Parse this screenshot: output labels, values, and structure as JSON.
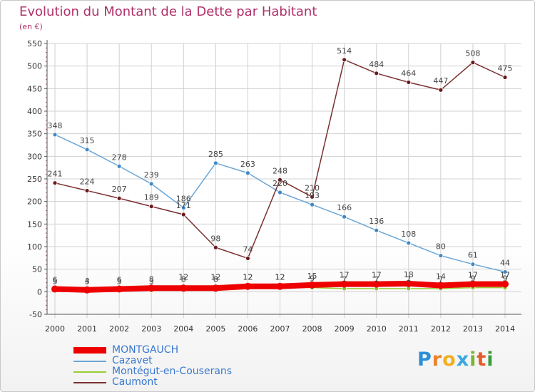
{
  "title": "Evolution du Montant de la Dette par Habitant",
  "subtitle": "(en €)",
  "logo": {
    "text": "Proxiti",
    "letter_colors": [
      "#2a8fd8",
      "#e8842a",
      "#f0b020",
      "#3aa8e0",
      "#7ab530",
      "#e85a2a",
      "#3a9a3a"
    ]
  },
  "colors": {
    "title": "#b0306a",
    "axis_text": "#333333",
    "grid": "#d0d0d0",
    "axis": "#555555"
  },
  "chart_data": {
    "type": "line",
    "categories": [
      "2000",
      "2001",
      "2002",
      "2003",
      "2004",
      "2005",
      "2006",
      "2007",
      "2008",
      "2009",
      "2010",
      "2011",
      "2012",
      "2013",
      "2014"
    ],
    "ylim": [
      -50,
      550
    ],
    "yticks": [
      -50,
      0,
      50,
      100,
      150,
      200,
      250,
      300,
      350,
      400,
      450,
      500,
      550
    ],
    "grid": true,
    "legend_position": "bottom-left",
    "series": [
      {
        "name": "MONTGAUCH",
        "color": "#ee0000",
        "width": "thick",
        "values": [
          6,
          4,
          6,
          8,
          8,
          8,
          12,
          12,
          15,
          17,
          17,
          18,
          14,
          17,
          17
        ],
        "labels": [
          "6",
          "4",
          "6",
          "8",
          "8",
          "8",
          "12",
          "12",
          "15",
          "17",
          "17",
          "18",
          "14",
          "17",
          "17"
        ],
        "marker_color": "#ee0000"
      },
      {
        "name": "Cazavet",
        "color": "#6aa6d6",
        "width": "thin",
        "values": [
          348,
          315,
          278,
          239,
          186,
          285,
          263,
          220,
          193,
          166,
          136,
          108,
          80,
          61,
          44
        ],
        "labels": [
          "348",
          "315",
          "278",
          "239",
          "186",
          "285",
          "263",
          "220",
          "193",
          "166",
          "136",
          "108",
          "80",
          "61",
          "44"
        ],
        "marker_color": "#3f88c8"
      },
      {
        "name": "Montégut-en-Couserans",
        "color": "#99cc33",
        "width": "thin",
        "values": [
          3,
          3,
          3,
          3,
          12,
          12,
          12,
          12,
          9,
          7,
          7,
          7,
          7,
          9,
          9
        ],
        "labels": [
          "3",
          "3",
          "3",
          "3",
          "12",
          "12",
          "12",
          "12",
          "9",
          "7",
          "7",
          "7",
          "7",
          "9",
          "9"
        ],
        "marker_color": "#88c030"
      },
      {
        "name": "Caumont",
        "color": "#7a3030",
        "width": "thin",
        "values": [
          241,
          224,
          207,
          189,
          171,
          98,
          74,
          248,
          210,
          514,
          484,
          464,
          447,
          508,
          475
        ],
        "labels": [
          "241",
          "224",
          "207",
          "189",
          "171",
          "98",
          "74",
          "248",
          "210",
          "514",
          "484",
          "464",
          "447",
          "508",
          "475"
        ],
        "marker_color": "#6a1a20"
      }
    ]
  }
}
